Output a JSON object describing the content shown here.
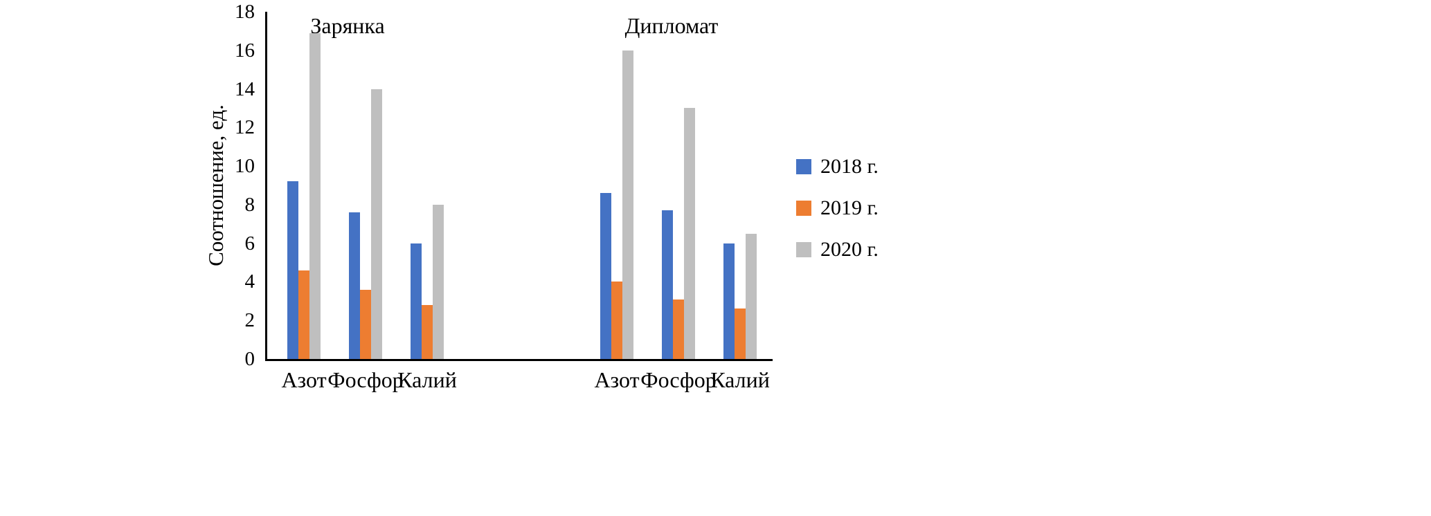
{
  "chart_data": {
    "type": "bar",
    "title": "",
    "ylabel": "Соотношение, ед.",
    "xlabel": "",
    "ylim": [
      0,
      18
    ],
    "yticks": [
      0,
      2,
      4,
      6,
      8,
      10,
      12,
      14,
      16,
      18
    ],
    "grid": "off",
    "legend_position": "right",
    "background_color": "#ffffff",
    "axis_color": "#000000",
    "series": [
      {
        "name": "2018 г.",
        "color": "#4472C4"
      },
      {
        "name": "2019 г.",
        "color": "#ED7D31"
      },
      {
        "name": "2020 г.",
        "color": "#BFBFBF"
      }
    ],
    "groups": [
      {
        "label": "Зарянка",
        "categories": [
          "Азот",
          "Фосфор",
          "Калий"
        ],
        "values_by_category": [
          [
            9.2,
            4.6,
            16.9
          ],
          [
            7.6,
            3.6,
            14.0
          ],
          [
            6.0,
            2.8,
            8.0
          ]
        ]
      },
      {
        "label": "Дипломат",
        "categories": [
          "Азот",
          "Фосфор",
          "Калий"
        ],
        "values_by_category": [
          [
            8.6,
            4.0,
            16.0
          ],
          [
            7.7,
            3.1,
            13.0
          ],
          [
            6.0,
            2.6,
            6.5
          ]
        ]
      }
    ]
  }
}
